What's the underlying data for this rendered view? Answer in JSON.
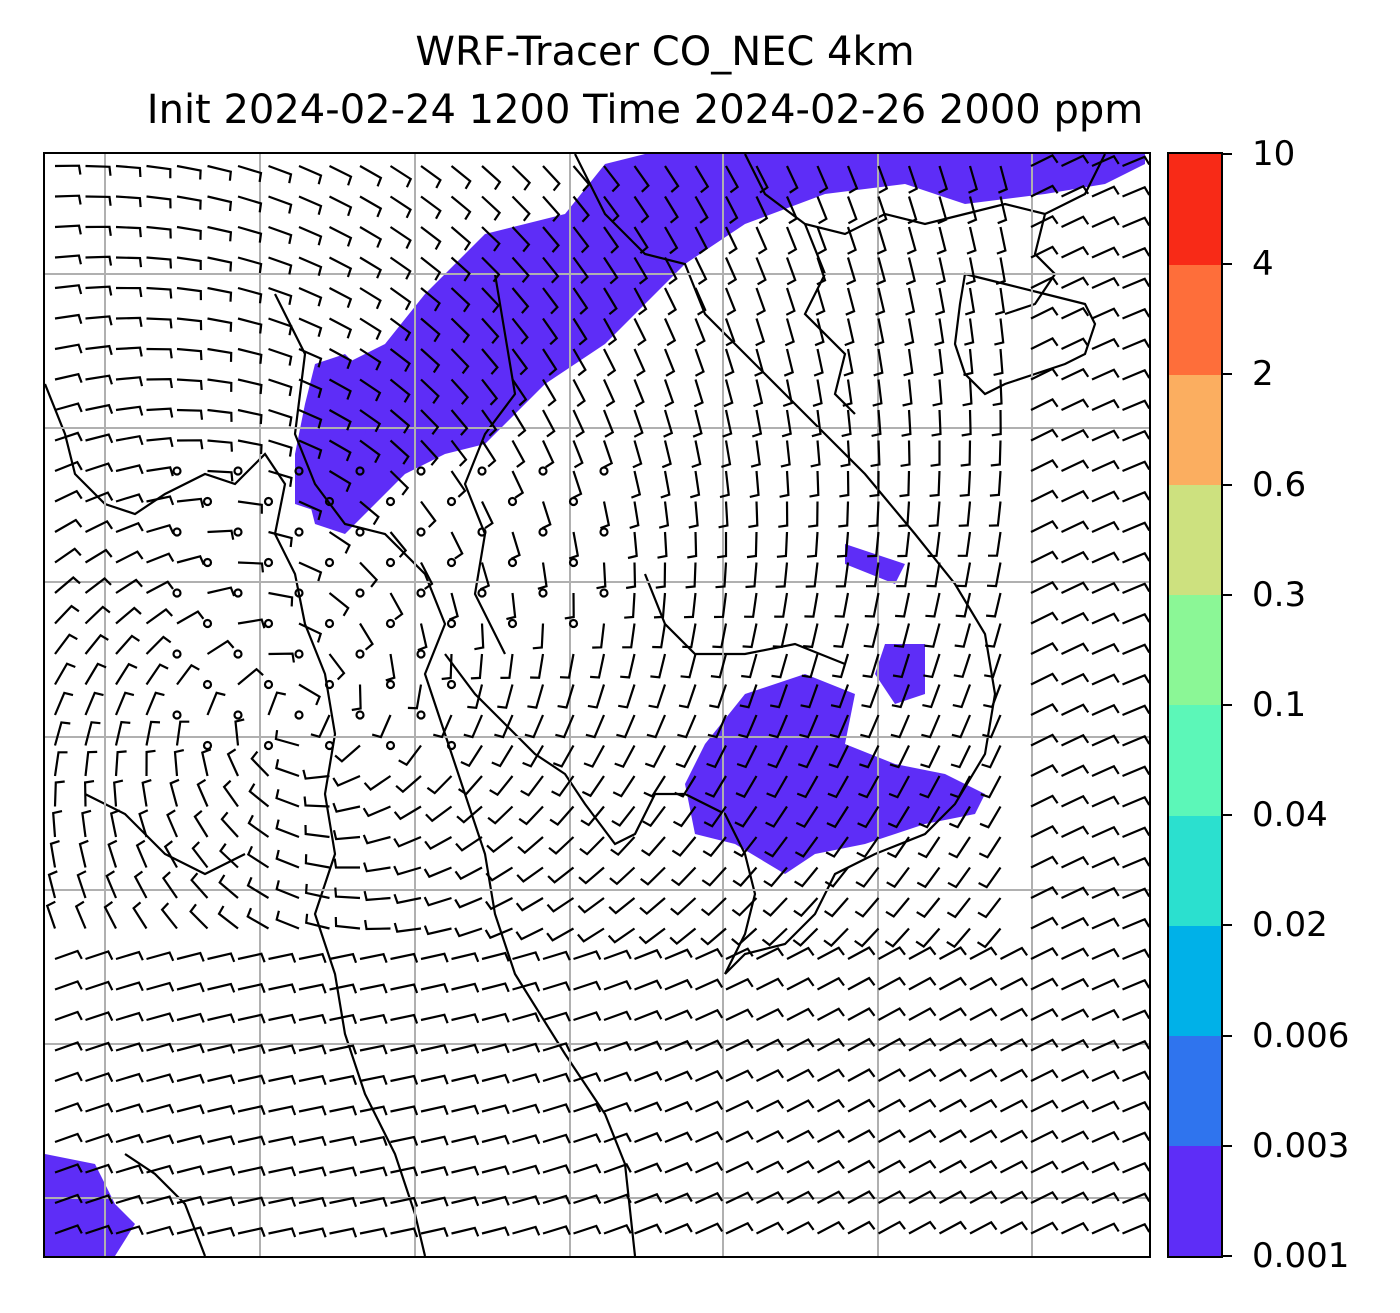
{
  "title": {
    "line1": "WRF-Tracer CO_NEC 4km",
    "line2": "Init 2024-02-24 1200 Time 2024-02-26 2000 ppm"
  },
  "colorbar": {
    "levels": [
      "0.001",
      "0.003",
      "0.006",
      "0.02",
      "0.04",
      "0.1",
      "0.3",
      "0.6",
      "2",
      "4",
      "10"
    ],
    "colors": [
      "#5e2df7",
      "#2f74ee",
      "#00b1e8",
      "#2be0cf",
      "#5cf7b8",
      "#8bf796",
      "#cde17f",
      "#fbae60",
      "#fe6e3a",
      "#f82a17"
    ]
  },
  "map": {
    "plume_color": "#5e2df7",
    "gridlines": true,
    "gridline_color": "#b0b0b0"
  }
}
